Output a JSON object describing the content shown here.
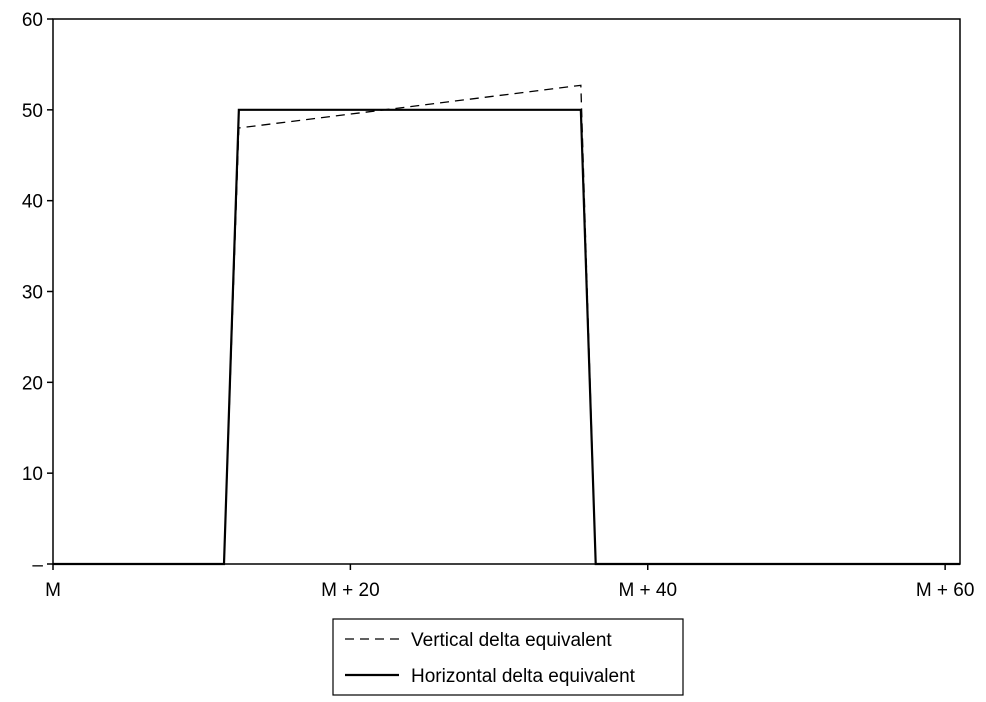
{
  "chart_data": {
    "type": "line",
    "title": "",
    "xlabel": "",
    "ylabel": "",
    "xlim": [
      0,
      61
    ],
    "ylim": [
      0,
      60
    ],
    "x_ticks": [
      {
        "value": 0,
        "label": "M"
      },
      {
        "value": 20,
        "label": "M + 20"
      },
      {
        "value": 40,
        "label": "M + 40"
      },
      {
        "value": 60,
        "label": "M + 60"
      }
    ],
    "y_ticks": [
      {
        "value": 0,
        "label": "–"
      },
      {
        "value": 10,
        "label": "10"
      },
      {
        "value": 20,
        "label": "20"
      },
      {
        "value": 30,
        "label": "30"
      },
      {
        "value": 40,
        "label": "40"
      },
      {
        "value": 50,
        "label": "50"
      },
      {
        "value": 60,
        "label": "60"
      }
    ],
    "grid": false,
    "legend_position": "bottom-center",
    "series": [
      {
        "name": "Vertical delta equivalent",
        "style": "dashed",
        "color": "#000000",
        "points": [
          [
            0,
            0
          ],
          [
            11.5,
            0
          ],
          [
            12.5,
            48
          ],
          [
            35.5,
            52.7
          ],
          [
            36.5,
            0
          ],
          [
            61,
            0
          ]
        ]
      },
      {
        "name": "Horizontal delta equivalent",
        "style": "solid",
        "color": "#000000",
        "points": [
          [
            0,
            0
          ],
          [
            11.5,
            0
          ],
          [
            12.5,
            50
          ],
          [
            35.5,
            50
          ],
          [
            36.5,
            0
          ],
          [
            61,
            0
          ]
        ]
      }
    ]
  }
}
